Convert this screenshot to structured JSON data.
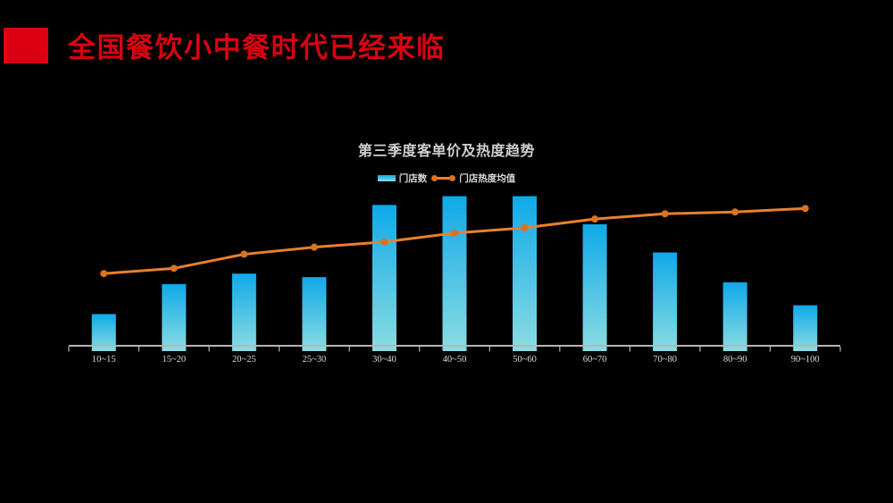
{
  "slide": {
    "title": "全国餐饮小中餐时代已经来临",
    "background_color": "#000000",
    "accent_red": "#db0011"
  },
  "chart": {
    "title": "第三季度客单价及热度趋势",
    "legend": {
      "bars": "门店数",
      "line": "门店热度均值"
    }
  },
  "chart_data": {
    "type": "bar",
    "subtype": "bar-with-line-combo",
    "title": "第三季度客单价及热度趋势",
    "xlabel": "",
    "ylabel": "",
    "units": "relative scale 0-100 (no y-axis ticks shown in chart)",
    "ylim": [
      0,
      100
    ],
    "grid": false,
    "legend_position": "top-center",
    "categories": [
      "10~15",
      "15~20",
      "20~25",
      "25~30",
      "30~40",
      "40~50",
      "50~60",
      "60~70",
      "70~80",
      "80~90",
      "90~100"
    ],
    "series": [
      {
        "name": "门店数",
        "type": "bar",
        "values": [
          18,
          35,
          41,
          39,
          80,
          85,
          85,
          69,
          53,
          36,
          23
        ],
        "color_top": "#0fa9e8",
        "color_bottom": "#8bdce1"
      },
      {
        "name": "门店热度均值",
        "type": "line",
        "values": [
          41,
          44,
          52,
          56,
          59,
          64,
          67,
          72,
          75,
          76,
          78
        ],
        "color": "#e8802f",
        "marker_color": "#d8731f",
        "marker": "circle"
      }
    ],
    "axis_color": "#b5b5b5",
    "label_color": "#dddddd"
  }
}
